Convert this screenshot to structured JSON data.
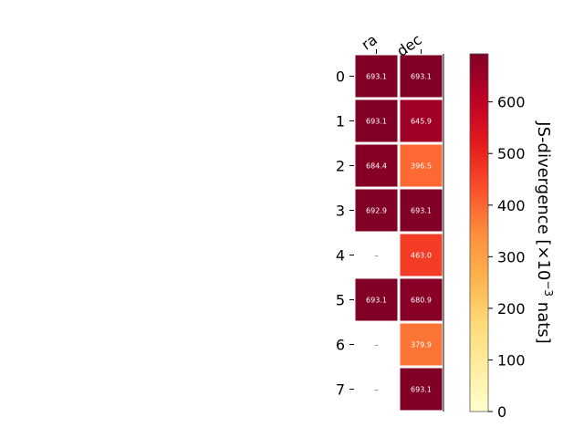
{
  "chart_data": {
    "type": "heatmap",
    "columns": [
      "ra",
      "dec"
    ],
    "rows": [
      "0",
      "1",
      "2",
      "3",
      "4",
      "5",
      "6",
      "7"
    ],
    "values": [
      [
        693.1,
        693.1
      ],
      [
        693.1,
        645.9
      ],
      [
        684.4,
        396.5
      ],
      [
        692.9,
        693.1
      ],
      [
        null,
        463.0
      ],
      [
        693.1,
        680.9
      ],
      [
        null,
        379.9
      ],
      [
        null,
        693.1
      ]
    ],
    "cell_labels": [
      [
        "693.1",
        "693.1"
      ],
      [
        "693.1",
        "645.9"
      ],
      [
        "684.4",
        "396.5"
      ],
      [
        "692.9",
        "693.1"
      ],
      [
        "–",
        "463.0"
      ],
      [
        "693.1",
        "680.9"
      ],
      [
        "–",
        "379.9"
      ],
      [
        "–",
        "693.1"
      ]
    ],
    "missing_label": "–",
    "colormap": "YlOrRd",
    "vmin": 0,
    "vmax": 693.1,
    "colorbar": {
      "ticks": [
        0,
        100,
        200,
        300,
        400,
        500,
        600
      ],
      "label": "JS-divergence [×10",
      "label_exp": "−3",
      "label_suffix": " nats]"
    }
  }
}
